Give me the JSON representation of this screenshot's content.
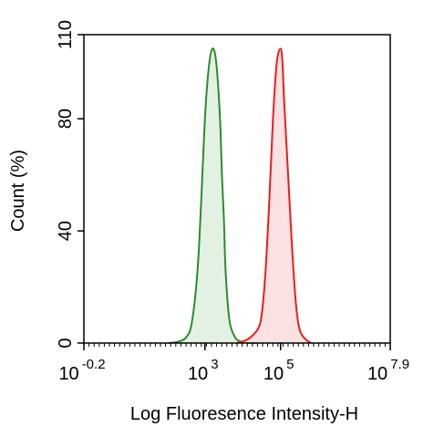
{
  "chart_data": {
    "type": "area",
    "title": "",
    "xlabel": "Log Fluoresence Intensity-H",
    "ylabel": "Count  (%)",
    "x_scale": "log10",
    "xlim_log10": [
      -0.2,
      7.9
    ],
    "ylim": [
      0,
      110
    ],
    "grid": false,
    "legend": "none",
    "yticks": [
      0,
      40,
      80,
      110
    ],
    "xticks": [
      {
        "base": "10",
        "exp": "-0.2",
        "value_log10": -0.2
      },
      {
        "base": "10",
        "exp": "3",
        "value_log10": 3
      },
      {
        "base": "10",
        "exp": "5",
        "value_log10": 5
      },
      {
        "base": "10",
        "exp": "7.9",
        "value_log10": 7.9
      }
    ],
    "series": [
      {
        "color": "#2e8b2e",
        "fill": "#e3f1e3",
        "x_log10": [
          2.05,
          2.3,
          2.5,
          2.65,
          2.8,
          2.9,
          3.0,
          3.1,
          3.2,
          3.3,
          3.4,
          3.45,
          3.5,
          3.55,
          3.65,
          3.8,
          3.9,
          4.0,
          4.15,
          4.35
        ],
        "y": [
          0,
          0.5,
          2,
          7,
          25,
          50,
          80,
          98,
          105,
          100,
          80,
          60,
          45,
          25,
          8,
          2,
          0.8,
          0.3,
          0.1,
          0
        ]
      },
      {
        "color": "#ee1c1c",
        "fill": "#fbe2e2",
        "x_log10": [
          3.85,
          4.05,
          4.2,
          4.4,
          4.5,
          4.6,
          4.7,
          4.8,
          4.9,
          5.0,
          5.05,
          5.1,
          5.2,
          5.3,
          5.4,
          5.5,
          5.65,
          5.8
        ],
        "y": [
          0,
          0.8,
          2,
          5,
          10,
          25,
          50,
          80,
          100,
          105,
          100,
          85,
          60,
          35,
          15,
          5,
          1.5,
          0
        ]
      }
    ]
  }
}
